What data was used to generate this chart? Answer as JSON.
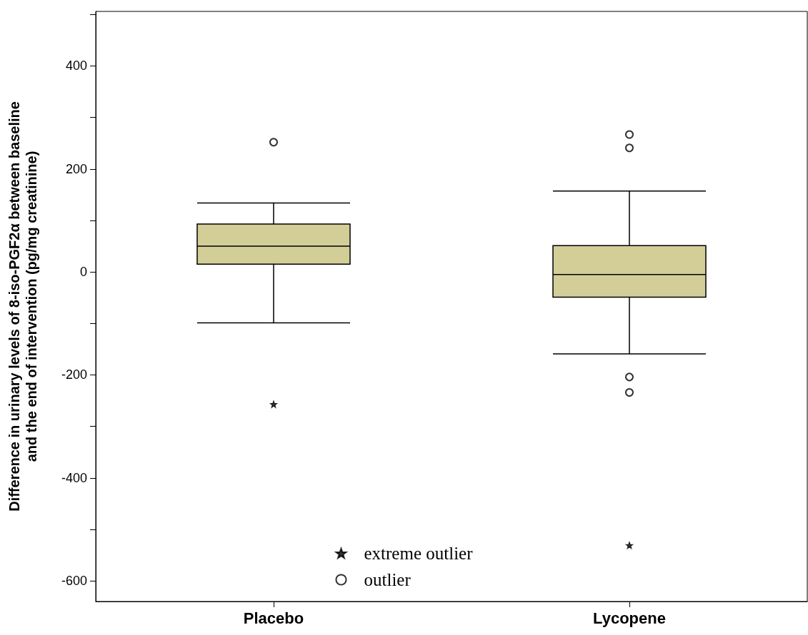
{
  "chart_data": {
    "type": "box",
    "ylabel": "Difference in urinary levels of 8-iso-PGF2α between baseline\nand the end of intervention (pg/mg creatinine)",
    "categories": [
      "Placebo",
      "Lycopene"
    ],
    "ylim": [
      -640,
      506
    ],
    "yticks": [
      {
        "value": 500,
        "label": null
      },
      400,
      {
        "value": 300,
        "label": null
      },
      200,
      {
        "value": 100,
        "label": null
      },
      0,
      {
        "value": -100,
        "label": null
      },
      -200,
      {
        "value": -300,
        "label": null
      },
      -400,
      {
        "value": -500,
        "label": null
      },
      -600
    ],
    "grid": false,
    "legend": "bottom",
    "series": [
      {
        "color": "#d3ce98",
        "boxes": [
          {
            "low": -99,
            "q1": 15,
            "median": 50,
            "q3": 93,
            "high": 134
          },
          {
            "low": -159,
            "q1": -49,
            "median": -5,
            "q3": 51,
            "high": 157
          }
        ]
      },
      {
        "type": "scatter",
        "name": "extreme outlier",
        "color": "#000000",
        "marker": "star",
        "x": [
          "Placebo",
          "Lycopene"
        ],
        "values": [
          -257,
          -531
        ]
      },
      {
        "type": "scatter",
        "name": "outlier",
        "color": "#000000",
        "marker": "circle",
        "x": [
          "Placebo",
          "Lycopene",
          "Lycopene",
          "Lycopene",
          "Lycopene"
        ],
        "values": [
          252,
          267,
          241,
          -204,
          -234
        ]
      }
    ]
  }
}
